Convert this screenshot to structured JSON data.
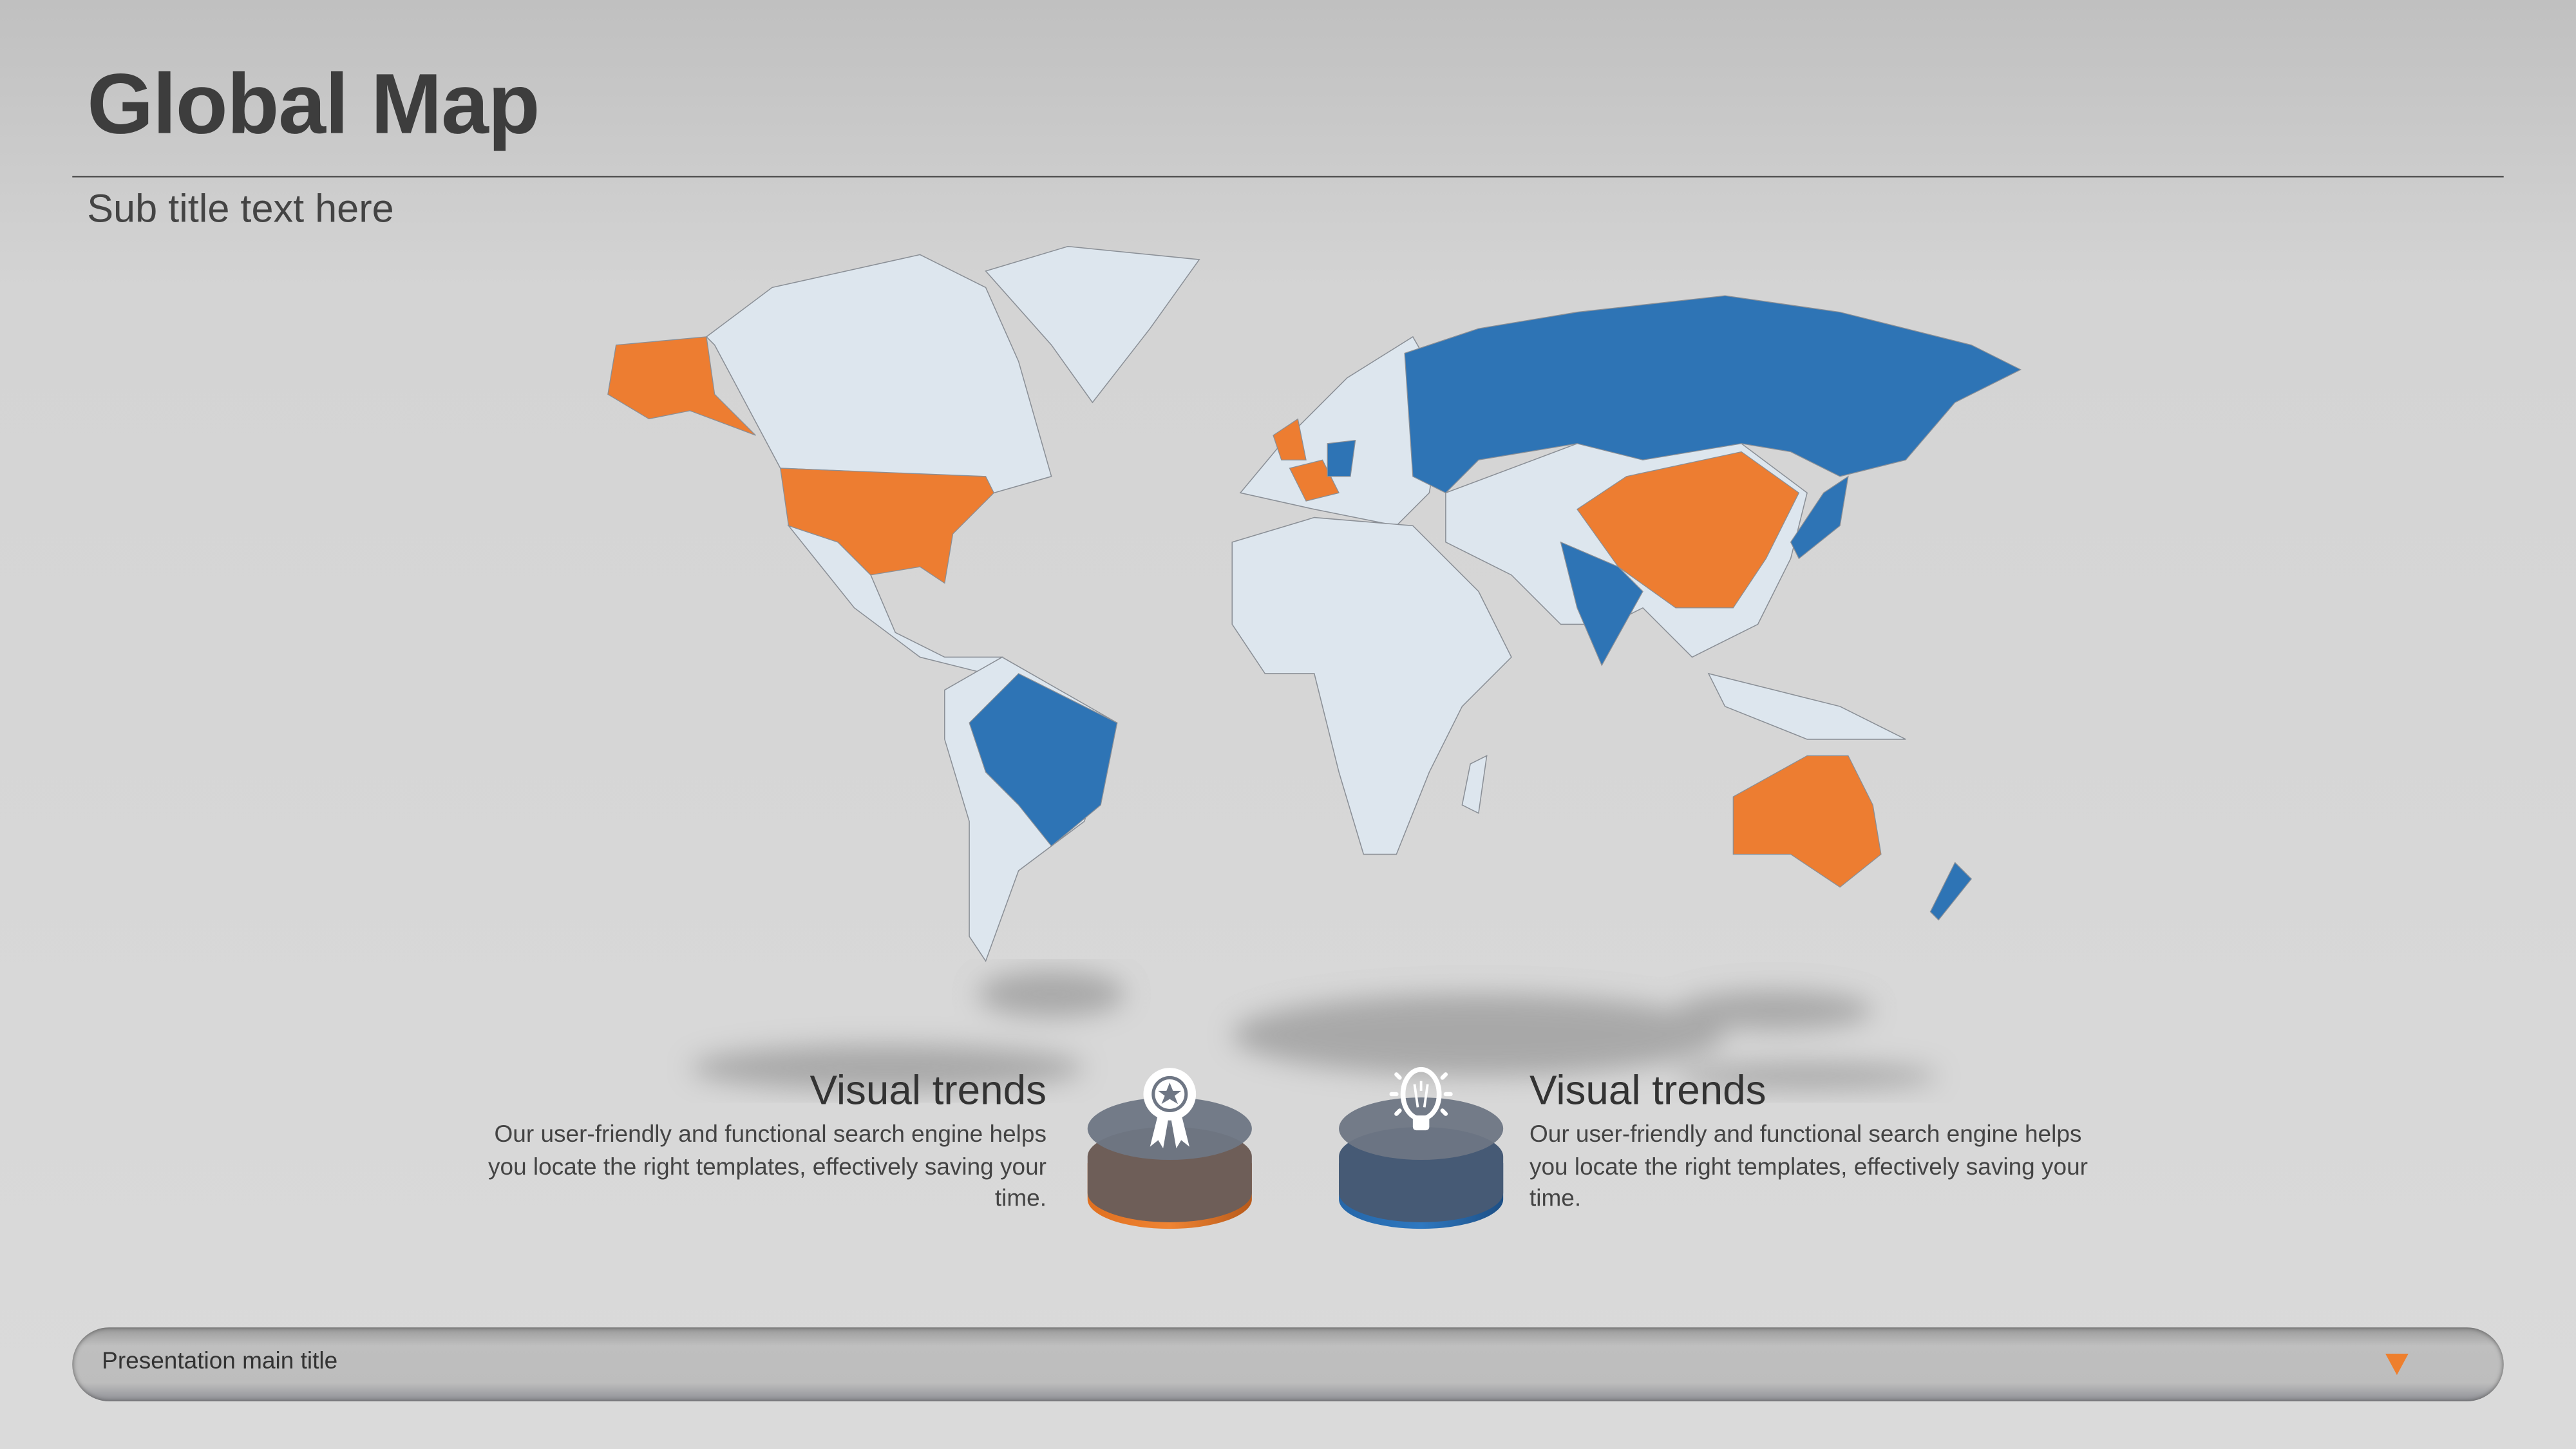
{
  "header": {
    "title": "Global Map",
    "subtitle": "Sub title text here"
  },
  "map": {
    "colors": {
      "orange": "#ed7d31",
      "blue": "#2e74b5",
      "land": "#dde6ee"
    },
    "highlighted_orange": [
      "Alaska",
      "United States",
      "United Kingdom",
      "France",
      "China",
      "Australia"
    ],
    "highlighted_blue": [
      "Russia",
      "Germany",
      "India",
      "Brazil",
      "Japan",
      "New Zealand"
    ]
  },
  "features": [
    {
      "heading": "Visual trends",
      "body": "Our user-friendly and functional search engine helps you locate the right templates, effectively saving your time.",
      "icon": "award-ribbon-icon",
      "color": "#ed7d31"
    },
    {
      "heading": "Visual trends",
      "body": "Our user-friendly and functional search engine helps you locate the right templates, effectively saving your time.",
      "icon": "lightbulb-icon",
      "color": "#2e74b5"
    }
  ],
  "footer": {
    "title": "Presentation main title",
    "indicator": "triangle-down-icon"
  }
}
